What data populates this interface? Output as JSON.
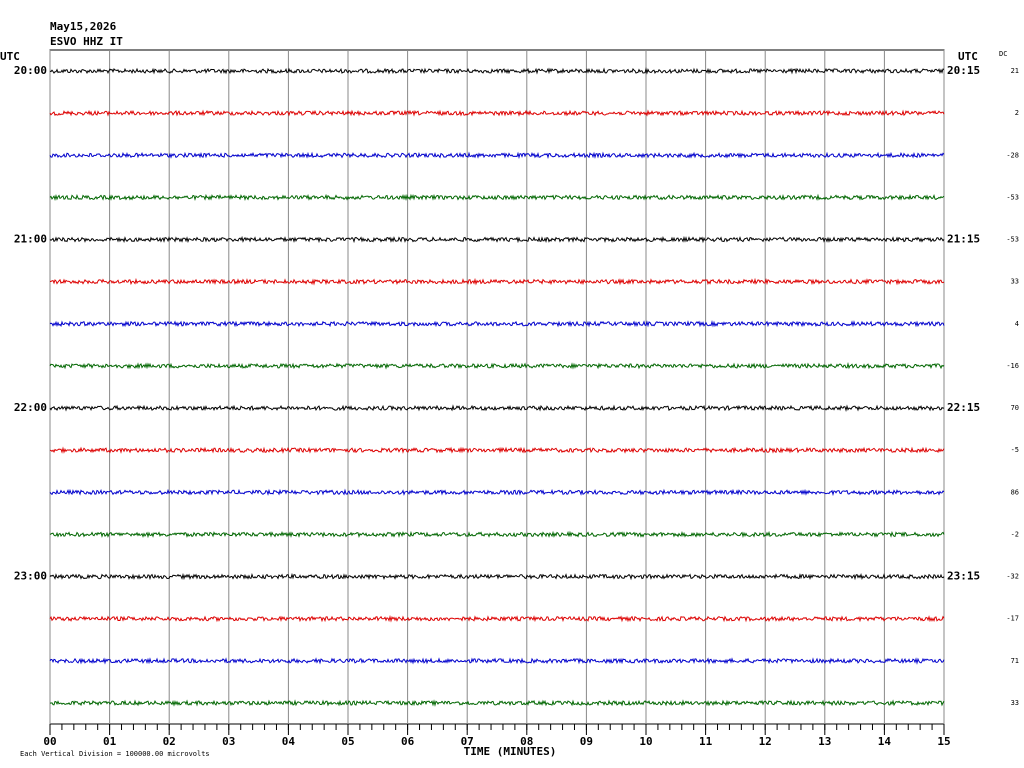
{
  "chart_data": {
    "type": "seismogram",
    "date": "May15,2026",
    "station": "ESVO HHZ IT",
    "left_axis_label": "UTC",
    "right_axis_label": "UTC",
    "dc_label": "DC",
    "xlabel": "TIME (MINUTES)",
    "footer": "Each Vertical Division = 100000.00 microvolts",
    "xlim": [
      0,
      15
    ],
    "xticks": [
      {
        "value": 0,
        "label": "00"
      },
      {
        "value": 1,
        "label": "01"
      },
      {
        "value": 2,
        "label": "02"
      },
      {
        "value": 3,
        "label": "03"
      },
      {
        "value": 4,
        "label": "04"
      },
      {
        "value": 5,
        "label": "05"
      },
      {
        "value": 6,
        "label": "06"
      },
      {
        "value": 7,
        "label": "07"
      },
      {
        "value": 8,
        "label": "08"
      },
      {
        "value": 9,
        "label": "09"
      },
      {
        "value": 10,
        "label": "10"
      },
      {
        "value": 11,
        "label": "11"
      },
      {
        "value": 12,
        "label": "12"
      },
      {
        "value": 13,
        "label": "13"
      },
      {
        "value": 14,
        "label": "14"
      },
      {
        "value": 15,
        "label": "15"
      }
    ],
    "grid": true,
    "left_labels": [
      "20:00",
      null,
      null,
      null,
      "21:00",
      null,
      null,
      null,
      "22:00",
      null,
      null,
      null,
      "23:00",
      null,
      null,
      null
    ],
    "right_labels": [
      "20:15",
      null,
      null,
      null,
      "21:15",
      null,
      null,
      null,
      "22:15",
      null,
      null,
      null,
      "23:15",
      null,
      null,
      null
    ],
    "dc_values": [
      21,
      2,
      -28,
      -53,
      -53,
      33,
      4,
      -16,
      70,
      -5,
      86,
      -2,
      -32,
      -17,
      71,
      33
    ],
    "colors": [
      "#000000",
      "#dd0000",
      "#0000cc",
      "#006600",
      "#000000",
      "#dd0000",
      "#0000cc",
      "#006600",
      "#000000",
      "#dd0000",
      "#0000cc",
      "#006600",
      "#000000",
      "#dd0000",
      "#0000cc",
      "#006600"
    ]
  }
}
